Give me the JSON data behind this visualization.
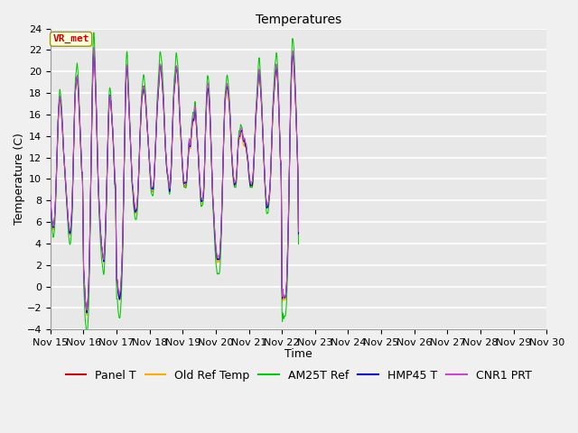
{
  "title": "Temperatures",
  "xlabel": "Time",
  "ylabel": "Temperature (C)",
  "ylim": [
    -4,
    24
  ],
  "annotation": "VR_met",
  "annotation_color": "#cc0000",
  "annotation_bg": "#ffffdd",
  "annotation_border": "#999900",
  "series_colors": [
    "#cc0000",
    "#ffaa00",
    "#00cc00",
    "#0000dd",
    "#cc44cc"
  ],
  "series_labels": [
    "Panel T",
    "Old Ref Temp",
    "AM25T Ref",
    "HMP45 T",
    "CNR1 PRT"
  ],
  "x_tick_labels": [
    "Nov 15",
    "Nov 16",
    "Nov 17",
    "Nov 18",
    "Nov 19",
    "Nov 20",
    "Nov 21",
    "Nov 22",
    "Nov 23",
    "Nov 24",
    "Nov 25",
    "Nov 26",
    "Nov 27",
    "Nov 28",
    "Nov 29",
    "Nov 30"
  ],
  "yticks": [
    -4,
    -2,
    0,
    2,
    4,
    6,
    8,
    10,
    12,
    14,
    16,
    18,
    20,
    22,
    24
  ],
  "bg_color": "#e8e8e8",
  "grid_color": "#ffffff",
  "title_fontsize": 10,
  "axis_label_fontsize": 9,
  "tick_fontsize": 8,
  "legend_fontsize": 9,
  "base_pattern": [
    8.5,
    7.5,
    6.5,
    6.0,
    5.5,
    5.5,
    6.0,
    7.0,
    8.5,
    10.5,
    12.5,
    14.5,
    16.0,
    17.0,
    17.5,
    17.0,
    16.5,
    15.5,
    14.5,
    13.0,
    12.0,
    11.0,
    10.0,
    9.0,
    8.0,
    7.0,
    6.0,
    5.5,
    5.0,
    5.0,
    5.5,
    6.5,
    8.0,
    10.5,
    13.0,
    15.5,
    17.5,
    18.5,
    19.0,
    19.5,
    19.0,
    18.0,
    16.5,
    15.0,
    13.5,
    12.0,
    10.5,
    9.5,
    3.0,
    1.0,
    -0.5,
    -1.5,
    -2.0,
    -2.5,
    -2.0,
    -1.0,
    0.5,
    3.0,
    6.5,
    10.5,
    14.5,
    18.0,
    20.5,
    22.0,
    21.5,
    20.0,
    18.0,
    16.0,
    13.5,
    11.0,
    9.0,
    7.5,
    6.0,
    5.0,
    4.0,
    3.5,
    3.0,
    2.5,
    2.5,
    3.5,
    5.0,
    7.0,
    9.5,
    12.0,
    14.5,
    16.5,
    17.5,
    17.5,
    17.0,
    16.0,
    15.0,
    14.0,
    12.5,
    11.0,
    9.5,
    8.5,
    1.5,
    0.5,
    -0.2,
    -0.7,
    -1.0,
    -1.0,
    -0.5,
    0.5,
    2.0,
    4.0,
    7.0,
    10.5,
    14.0,
    17.5,
    19.5,
    20.5,
    20.0,
    18.5,
    17.0,
    15.5,
    14.0,
    12.5,
    11.0,
    9.5,
    9.0,
    8.0,
    7.5,
    7.0,
    7.0,
    7.0,
    7.5,
    8.5,
    10.0,
    11.5,
    13.5,
    15.0,
    16.5,
    17.5,
    18.0,
    18.5,
    18.5,
    18.0,
    17.5,
    16.5,
    15.5,
    14.5,
    13.5,
    12.5,
    11.5,
    10.5,
    9.5,
    9.0,
    9.0,
    9.0,
    9.5,
    10.5,
    12.0,
    13.5,
    15.0,
    16.5,
    17.5,
    18.5,
    19.5,
    20.5,
    20.5,
    20.0,
    19.5,
    18.5,
    17.5,
    16.0,
    14.5,
    13.0,
    12.0,
    11.0,
    10.5,
    10.0,
    9.5,
    9.0,
    9.5,
    10.5,
    12.0,
    14.0,
    16.0,
    17.5,
    18.5,
    19.0,
    20.0,
    20.5,
    20.0,
    19.5,
    18.5,
    17.0,
    15.5,
    14.5,
    13.5,
    12.0,
    11.0,
    10.0,
    9.5,
    9.5,
    9.5,
    9.5,
    10.0,
    11.0,
    12.0,
    13.0,
    13.5,
    13.0,
    13.5,
    14.5,
    15.0,
    15.5,
    15.5,
    16.0,
    16.5,
    16.0,
    15.0,
    14.0,
    13.0,
    12.0,
    10.5,
    9.5,
    8.5,
    8.0,
    8.0,
    8.0,
    8.5,
    9.5,
    11.5,
    14.0,
    16.0,
    17.5,
    18.5,
    18.5,
    18.0,
    17.0,
    15.5,
    13.5,
    11.5,
    9.5,
    8.0,
    7.0,
    5.5,
    4.5,
    3.5,
    3.0,
    2.5,
    2.5,
    2.5,
    2.5,
    3.0,
    4.0,
    5.5,
    7.5,
    10.0,
    12.5,
    14.5,
    16.5,
    17.5,
    18.0,
    18.5,
    18.5,
    18.0,
    17.5,
    16.5,
    15.5,
    14.0,
    12.5,
    11.5,
    10.5,
    10.0,
    9.5,
    9.5,
    9.5,
    10.0,
    11.0,
    12.5,
    13.5,
    14.0,
    14.0,
    14.5,
    14.5,
    14.5,
    14.0,
    13.5,
    13.5,
    13.5,
    13.0,
    13.0,
    12.5,
    12.0,
    11.5,
    10.5,
    10.0,
    9.5,
    9.5,
    9.5,
    9.5,
    10.0,
    11.0,
    12.5,
    14.0,
    15.5,
    16.5,
    17.5,
    18.5,
    19.5,
    20.0,
    19.5,
    18.5,
    17.5,
    16.0,
    14.5,
    13.0,
    11.5,
    10.0,
    9.0,
    8.0,
    7.5,
    7.5,
    7.5,
    8.0,
    8.5,
    9.5,
    11.0,
    13.0,
    15.0,
    16.5,
    17.5,
    18.5,
    19.5,
    20.0,
    20.5,
    20.0,
    19.0,
    17.5,
    15.5,
    13.5,
    11.5,
    10.0,
    0.0,
    -0.5,
    -1.0,
    -1.0,
    -1.0,
    -1.0,
    -0.5,
    0.5,
    2.5,
    5.0,
    8.0,
    11.5,
    15.0,
    18.0,
    20.0,
    21.5,
    21.5,
    21.0,
    20.0,
    18.5,
    17.0,
    15.0,
    13.0,
    11.0,
    5.0
  ]
}
